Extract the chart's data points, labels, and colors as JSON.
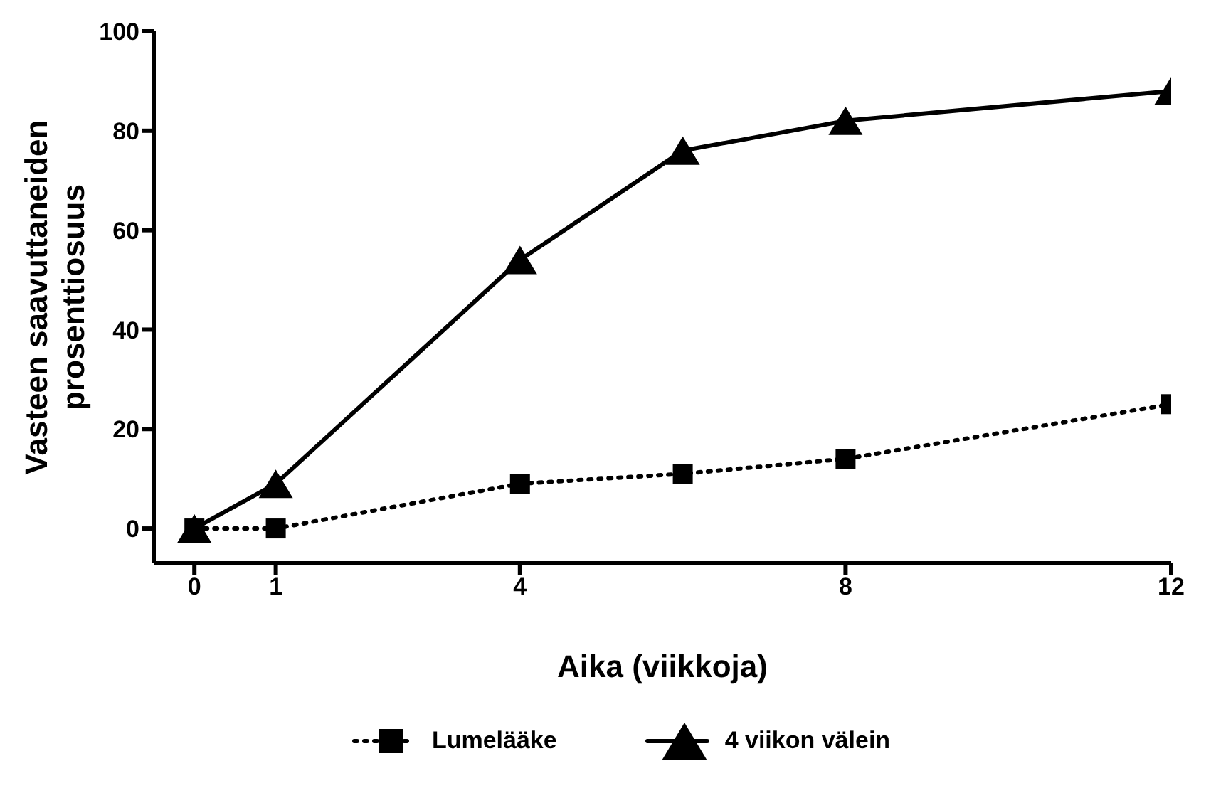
{
  "chart_data": {
    "type": "line",
    "xlabel": "Aika (viikkoja)",
    "ylabel": "Vasteen saavuttaneiden prosenttiosuus",
    "x": [
      0,
      1,
      4,
      6,
      8,
      12
    ],
    "series": [
      {
        "name": "Lumelääke",
        "color": "#000000",
        "values": [
          0,
          0,
          9,
          11,
          14,
          25
        ],
        "marker": "square",
        "line_style": "dotted"
      },
      {
        "name": "4 viikon välein",
        "color": "#000000",
        "values": [
          0,
          9,
          54,
          76,
          82,
          88
        ],
        "marker": "triangle",
        "line_style": "solid"
      }
    ],
    "xlim": [
      -0.5,
      12
    ],
    "xticks": [
      0,
      1,
      4,
      8,
      12
    ],
    "ylim": [
      -7,
      100
    ],
    "yticks": [
      0,
      20,
      40,
      60,
      80,
      100
    ],
    "legend": "bottom"
  }
}
